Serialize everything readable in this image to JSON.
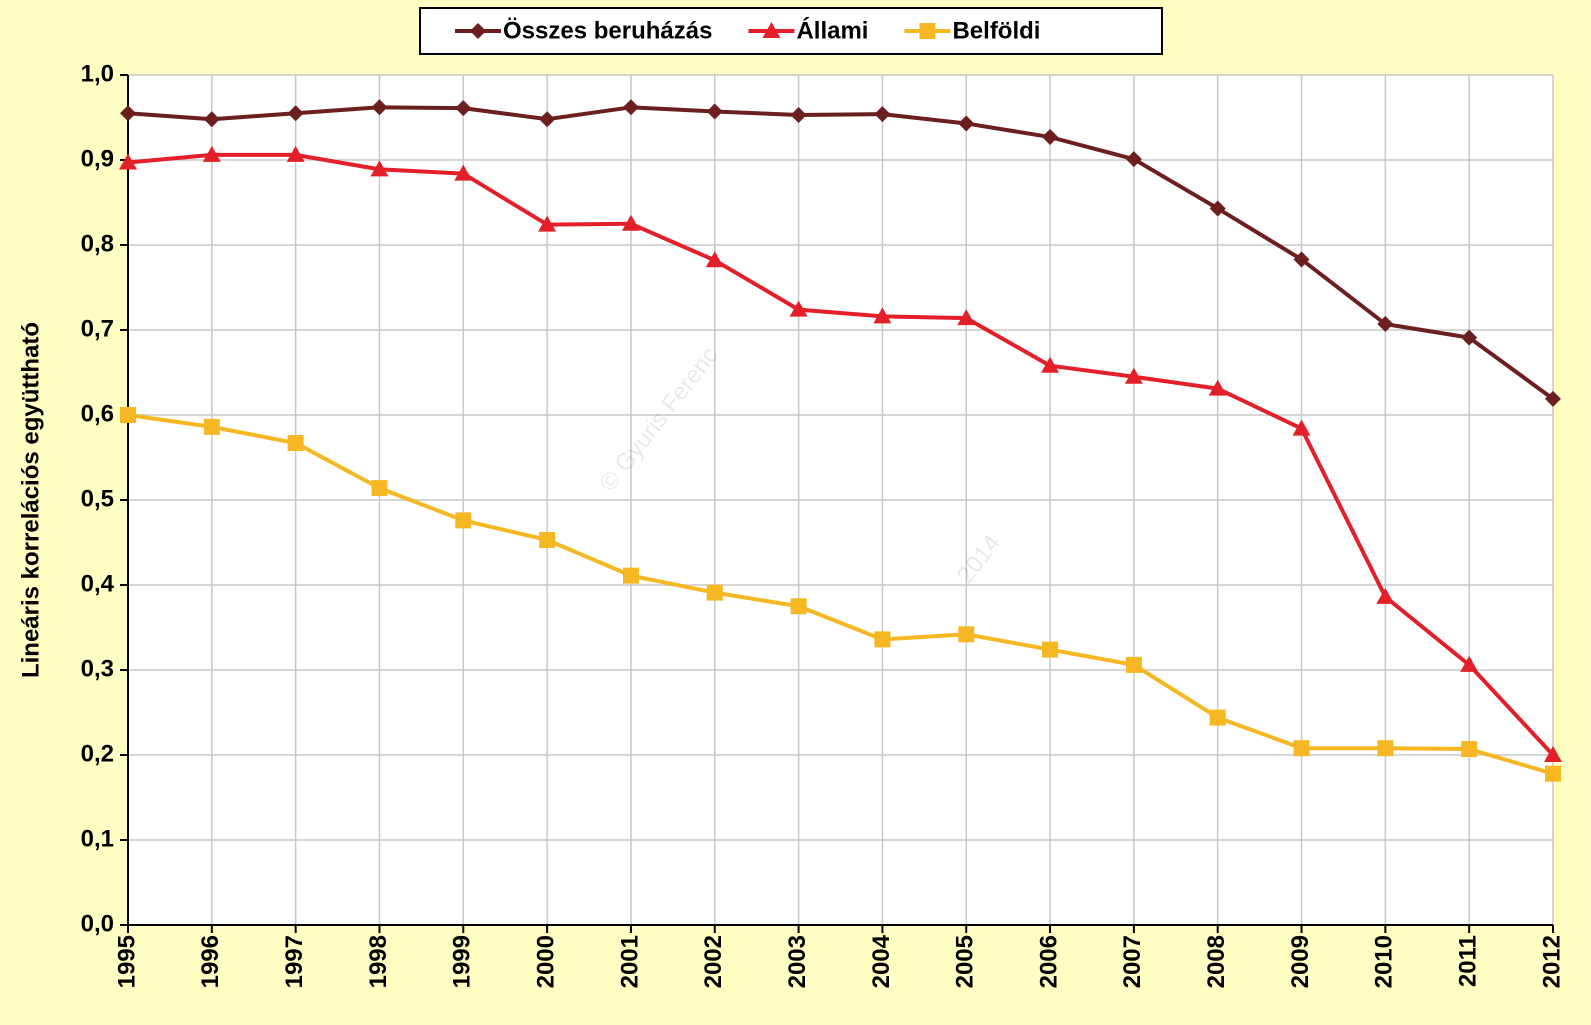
{
  "chart_data": {
    "type": "line",
    "y_label": "Lineáris korrelációs együttható",
    "watermark": "© Gyuris Ferenc",
    "watermark_year": "2014",
    "categories": [
      "1995",
      "1996",
      "1997",
      "1998",
      "1999",
      "2000",
      "2001",
      "2002",
      "2003",
      "2004",
      "2005",
      "2006",
      "2007",
      "2008",
      "2009",
      "2010",
      "2011",
      "2012"
    ],
    "series": [
      {
        "name": "Összes beruházás",
        "color": "#6b1f1f",
        "marker": "diamond",
        "values": [
          0.955,
          0.948,
          0.955,
          0.962,
          0.961,
          0.948,
          0.962,
          0.957,
          0.953,
          0.954,
          0.943,
          0.927,
          0.901,
          0.843,
          0.783,
          0.707,
          0.691,
          0.619
        ]
      },
      {
        "name": "Állami",
        "color": "#e3202a",
        "marker": "triangle",
        "values": [
          0.897,
          0.906,
          0.906,
          0.889,
          0.884,
          0.824,
          0.825,
          0.782,
          0.724,
          0.716,
          0.714,
          0.658,
          0.645,
          0.631,
          0.584,
          0.386,
          0.306,
          0.2
        ]
      },
      {
        "name": "Belföldi",
        "color": "#f5b822",
        "marker": "square",
        "values": [
          0.6,
          0.586,
          0.567,
          0.514,
          0.476,
          0.453,
          0.411,
          0.391,
          0.375,
          0.336,
          0.342,
          0.324,
          0.306,
          0.244,
          0.208,
          0.208,
          0.207,
          0.178
        ]
      }
    ],
    "ylim": [
      0,
      1
    ],
    "yticks": [
      {
        "value": 0,
        "label": "0,0"
      },
      {
        "value": 0.1,
        "label": "0,1"
      },
      {
        "value": 0.2,
        "label": "0,2"
      },
      {
        "value": 0.3,
        "label": "0,3"
      },
      {
        "value": 0.4,
        "label": "0,4"
      },
      {
        "value": 0.5,
        "label": "0,5"
      },
      {
        "value": 0.6,
        "label": "0,6"
      },
      {
        "value": 0.7,
        "label": "0,7"
      },
      {
        "value": 0.8,
        "label": "0,8"
      },
      {
        "value": 0.9,
        "label": "0,9"
      },
      {
        "value": 1,
        "label": "1,0"
      }
    ],
    "grid": true,
    "legend": "top"
  }
}
